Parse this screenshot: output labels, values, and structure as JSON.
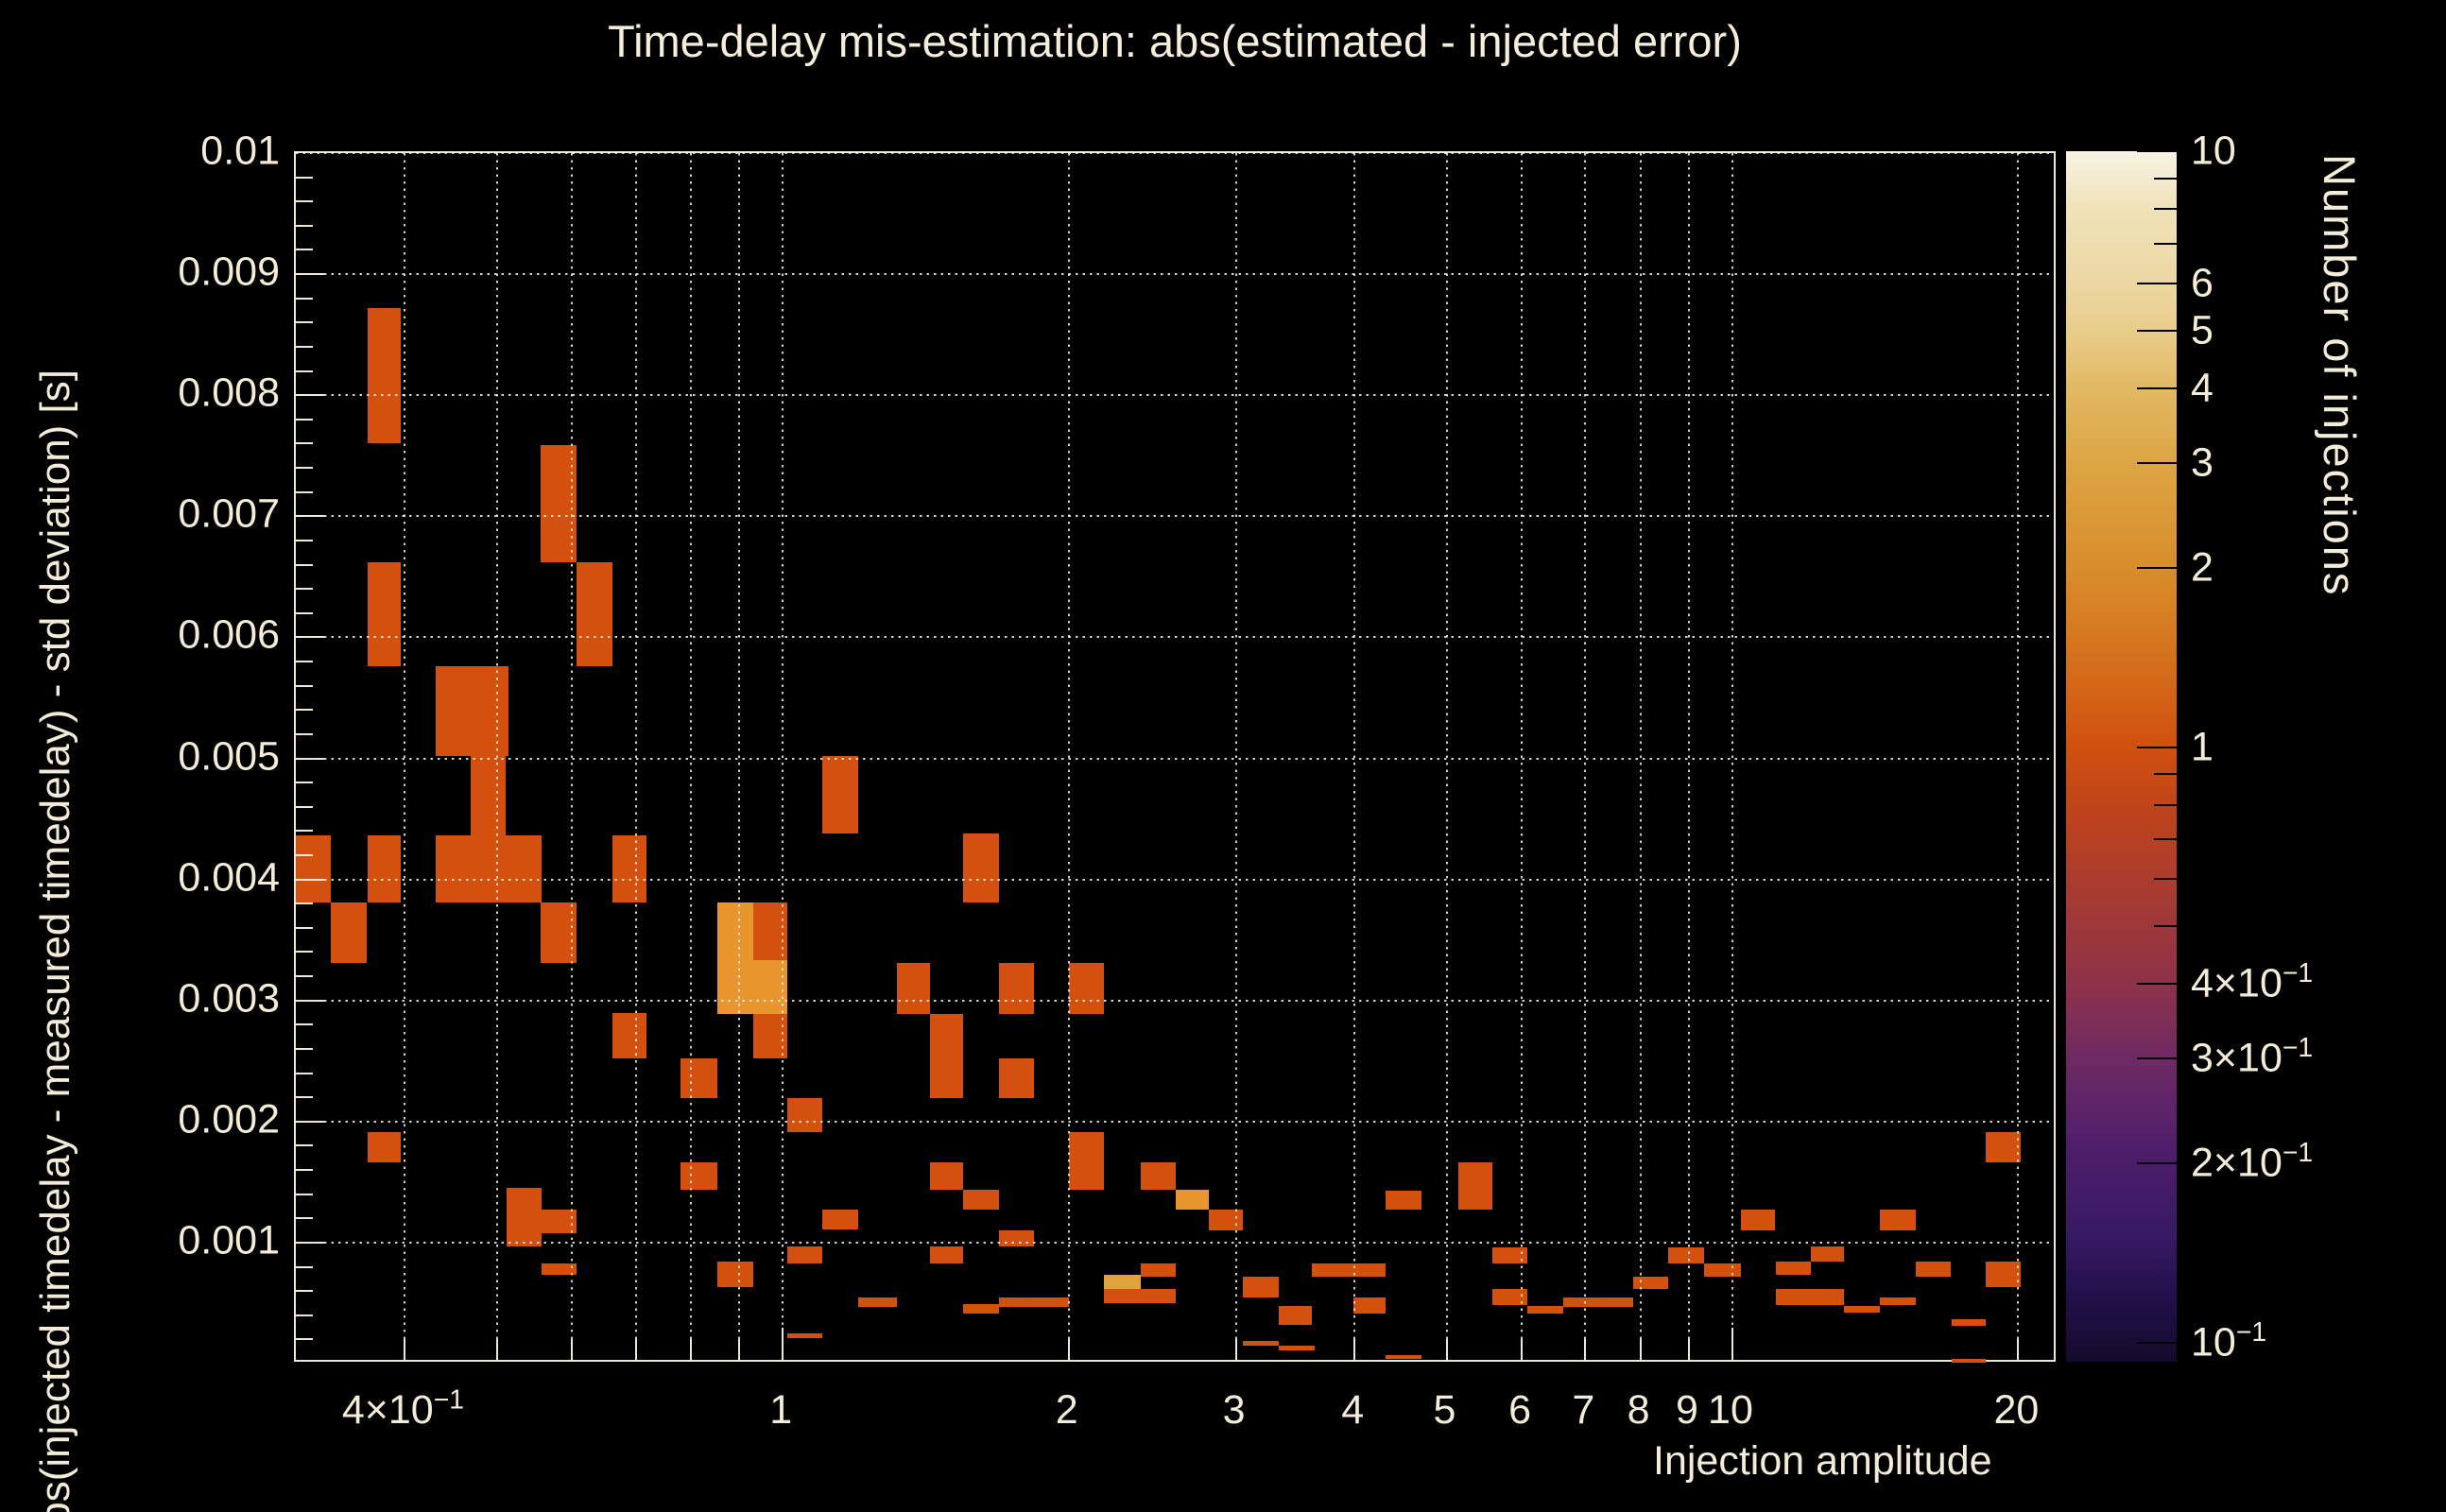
{
  "figure": {
    "background_color": "#000000",
    "text_color": "#f2ecd8",
    "frame_color": "#eee8d4"
  },
  "chart_data": {
    "type": "heatmap",
    "title": "Time-delay mis-estimation: abs(estimated - injected error)",
    "xlabel": "Injection amplitude",
    "ylabel": "bs(injected timedelay - measured timedelay) - std deviation) [s]",
    "zlabel": "Number of injections",
    "grid": true,
    "x_axis": {
      "scale": "log",
      "min": 0.307,
      "max": 22.0,
      "ticks": [
        0.4,
        0.5,
        0.6,
        0.7,
        0.8,
        0.9,
        1,
        2,
        3,
        4,
        5,
        6,
        7,
        8,
        9,
        10,
        20
      ],
      "tick_labels": [
        {
          "v": 0.4,
          "base": "4×10",
          "exp": "−1"
        },
        {
          "v": 1,
          "base": "1"
        },
        {
          "v": 2,
          "base": "2"
        },
        {
          "v": 3,
          "base": "3"
        },
        {
          "v": 4,
          "base": "4"
        },
        {
          "v": 5,
          "base": "5"
        },
        {
          "v": 6,
          "base": "6"
        },
        {
          "v": 7,
          "base": "7"
        },
        {
          "v": 8,
          "base": "8"
        },
        {
          "v": 9,
          "base": "9"
        },
        {
          "v": 10,
          "base": "10"
        },
        {
          "v": 20,
          "base": "20"
        }
      ]
    },
    "y_axis": {
      "scale": "linear",
      "min": 0,
      "max": 0.01,
      "major_tick_step": 0.001,
      "minor_tick_step": 0.0002,
      "tick_labels": [
        {
          "v": 0.01,
          "t": "0.01"
        },
        {
          "v": 0.009,
          "t": "0.009"
        },
        {
          "v": 0.008,
          "t": "0.008"
        },
        {
          "v": 0.007,
          "t": "0.007"
        },
        {
          "v": 0.006,
          "t": "0.006"
        },
        {
          "v": 0.005,
          "t": "0.005"
        },
        {
          "v": 0.004,
          "t": "0.004"
        },
        {
          "v": 0.003,
          "t": "0.003"
        },
        {
          "v": 0.002,
          "t": "0.002"
        },
        {
          "v": 0.001,
          "t": "0.001"
        }
      ]
    },
    "z_axis": {
      "scale": "log",
      "min": 0.093,
      "max": 10,
      "ticks": [
        10,
        9,
        8,
        7,
        6,
        5,
        4,
        3,
        2,
        1,
        0.9,
        0.8,
        0.7,
        0.6,
        0.5,
        0.4,
        0.3,
        0.2,
        0.1
      ],
      "labels": [
        {
          "v": 10,
          "base": "10"
        },
        {
          "v": 6,
          "base": "6"
        },
        {
          "v": 5,
          "base": "5"
        },
        {
          "v": 4,
          "base": "4"
        },
        {
          "v": 3,
          "base": "3"
        },
        {
          "v": 2,
          "base": "2"
        },
        {
          "v": 1,
          "base": "1"
        },
        {
          "v": 0.4,
          "base": "4×10",
          "exp": "−1"
        },
        {
          "v": 0.3,
          "base": "3×10",
          "exp": "−1"
        },
        {
          "v": 0.2,
          "base": "2×10",
          "exp": "−1"
        },
        {
          "v": 0.1,
          "base": "10",
          "exp": "−1"
        }
      ]
    },
    "palette_stops": [
      {
        "v": 10,
        "c": "#f7f3e3"
      },
      {
        "v": 8,
        "c": "#f0e2b9"
      },
      {
        "v": 6,
        "c": "#ecd7a2"
      },
      {
        "v": 5,
        "c": "#e8cd8b"
      },
      {
        "v": 4,
        "c": "#e2b963"
      },
      {
        "v": 3,
        "c": "#dda544"
      },
      {
        "v": 2,
        "c": "#d98d2b"
      },
      {
        "v": 1.4,
        "c": "#d5701c"
      },
      {
        "v": 1,
        "c": "#d1500f"
      },
      {
        "v": 0.75,
        "c": "#bc421d"
      },
      {
        "v": 0.55,
        "c": "#a53a34"
      },
      {
        "v": 0.4,
        "c": "#8e3249"
      },
      {
        "v": 0.3,
        "c": "#6e2a63"
      },
      {
        "v": 0.22,
        "c": "#521f6b"
      },
      {
        "v": 0.15,
        "c": "#371963"
      },
      {
        "v": 0.12,
        "c": "#22104a"
      },
      {
        "v": 0.093,
        "c": "#130b2b"
      }
    ],
    "count_colors": {
      "1": "#d4500e",
      "2": "#e8962d",
      "3": "#dfa43c"
    },
    "cells": [
      [
        0.365,
        0.396,
        0.0076,
        0.00872,
        1
      ],
      [
        0.556,
        0.606,
        0.00662,
        0.00759,
        1
      ],
      [
        0.365,
        0.396,
        0.00576,
        0.00662,
        1
      ],
      [
        0.607,
        0.661,
        0.00576,
        0.00662,
        1
      ],
      [
        0.431,
        0.514,
        0.00502,
        0.00576,
        1
      ],
      [
        0.469,
        0.511,
        0.00436,
        0.00502,
        1
      ],
      [
        0.431,
        0.557,
        0.00381,
        0.00436,
        1
      ],
      [
        0.307,
        0.334,
        0.00381,
        0.00436,
        1
      ],
      [
        0.365,
        0.396,
        0.00381,
        0.00436,
        1
      ],
      [
        0.661,
        0.719,
        0.00381,
        0.00436,
        1
      ],
      [
        0.334,
        0.365,
        0.00331,
        0.00381,
        1
      ],
      [
        0.556,
        0.607,
        0.00331,
        0.00381,
        1
      ],
      [
        0.661,
        0.719,
        0.00252,
        0.0029,
        1
      ],
      [
        0.365,
        0.396,
        0.00166,
        0.00191,
        1
      ],
      [
        0.512,
        0.557,
        0.00097,
        0.00145,
        1
      ],
      [
        0.557,
        0.607,
        0.00108,
        0.00127,
        1
      ],
      [
        0.557,
        0.607,
        0.00073,
        0.00083,
        1
      ],
      [
        1.1,
        1.2,
        0.00438,
        0.00502,
        1
      ],
      [
        1.55,
        1.69,
        0.00381,
        0.00438,
        1
      ],
      [
        0.853,
        0.931,
        0.00289,
        0.00381,
        2
      ],
      [
        0.931,
        1.01,
        0.00333,
        0.00381,
        1
      ],
      [
        0.931,
        1.01,
        0.00289,
        0.00333,
        2
      ],
      [
        0.931,
        1.01,
        0.00252,
        0.00289,
        1
      ],
      [
        0.781,
        0.853,
        0.00219,
        0.00252,
        1
      ],
      [
        1.01,
        1.1,
        0.00191,
        0.00219,
        1
      ],
      [
        0.781,
        0.853,
        0.00144,
        0.00166,
        1
      ],
      [
        1.43,
        1.55,
        0.00219,
        0.00289,
        1
      ],
      [
        1.32,
        1.43,
        0.00289,
        0.00331,
        1
      ],
      [
        1.69,
        1.84,
        0.00289,
        0.00331,
        1
      ],
      [
        2.0,
        2.18,
        0.00289,
        0.00331,
        1
      ],
      [
        1.69,
        1.84,
        0.00219,
        0.00252,
        1
      ],
      [
        1.43,
        1.55,
        0.00144,
        0.00166,
        1
      ],
      [
        1.55,
        1.69,
        0.00127,
        0.00144,
        1
      ],
      [
        1.1,
        1.2,
        0.00111,
        0.00127,
        1
      ],
      [
        1.69,
        1.84,
        0.00097,
        0.0011,
        1
      ],
      [
        0.853,
        0.931,
        0.00063,
        0.00084,
        1
      ],
      [
        1.01,
        1.1,
        0.00083,
        0.00097,
        1
      ],
      [
        1.43,
        1.55,
        0.00083,
        0.00097,
        1
      ],
      [
        1.2,
        1.32,
        0.00047,
        0.00055,
        1
      ],
      [
        1.55,
        1.69,
        0.00041,
        0.00049,
        1
      ],
      [
        1.69,
        2.0,
        0.00047,
        0.00055,
        1
      ],
      [
        1.01,
        1.1,
        0.00021,
        0.00025,
        1
      ],
      [
        2.0,
        2.18,
        0.00144,
        0.00191,
        1
      ],
      [
        2.38,
        2.59,
        0.00144,
        0.00166,
        1
      ],
      [
        2.59,
        2.81,
        0.00127,
        0.00144,
        2
      ],
      [
        2.81,
        3.05,
        0.0011,
        0.00127,
        1
      ],
      [
        2.38,
        2.59,
        0.00072,
        0.00083,
        1
      ],
      [
        2.18,
        2.38,
        0.00062,
        0.00073,
        3
      ],
      [
        2.18,
        2.59,
        0.0005,
        0.00062,
        1
      ],
      [
        3.05,
        3.33,
        0.00055,
        0.00072,
        1
      ],
      [
        3.33,
        3.61,
        0.00032,
        0.00048,
        1
      ],
      [
        3.05,
        3.33,
        0.00015,
        0.00019,
        1
      ],
      [
        3.33,
        3.63,
        0.00011,
        0.00015,
        1
      ],
      [
        3.61,
        4.31,
        0.00072,
        0.00083,
        1
      ],
      [
        3.99,
        4.31,
        0.00041,
        0.00055,
        1
      ],
      [
        4.31,
        4.71,
        0.00127,
        0.00143,
        1
      ],
      [
        5.14,
        5.59,
        0.00127,
        0.00166,
        1
      ],
      [
        4.31,
        4.71,
        4e-05,
        7e-05,
        1
      ],
      [
        5.59,
        6.08,
        0.00083,
        0.00096,
        1
      ],
      [
        5.59,
        6.08,
        0.00048,
        0.00062,
        1
      ],
      [
        6.08,
        6.64,
        0.00041,
        0.00048,
        1
      ],
      [
        6.64,
        7.86,
        0.00047,
        0.00055,
        1
      ],
      [
        18.5,
        20.1,
        0.00166,
        0.00191,
        1
      ],
      [
        10.2,
        11.1,
        0.0011,
        0.00127,
        1
      ],
      [
        14.3,
        15.6,
        0.0011,
        0.00127,
        1
      ],
      [
        8.56,
        9.34,
        0.00083,
        0.00096,
        1
      ],
      [
        9.34,
        10.2,
        0.00072,
        0.00083,
        1
      ],
      [
        7.86,
        8.56,
        0.00062,
        0.00072,
        1
      ],
      [
        11.1,
        12.1,
        0.00073,
        0.00084,
        1
      ],
      [
        11.1,
        13.1,
        0.00048,
        0.00062,
        1
      ],
      [
        12.1,
        13.1,
        0.00084,
        0.00097,
        1
      ],
      [
        13.1,
        14.3,
        0.00042,
        0.00048,
        1
      ],
      [
        14.3,
        15.6,
        0.00048,
        0.00055,
        1
      ],
      [
        15.6,
        17.0,
        0.00072,
        0.00084,
        1
      ],
      [
        18.5,
        20.1,
        0.00063,
        0.00084,
        1
      ],
      [
        17.0,
        18.5,
        0.00031,
        0.00037,
        1
      ],
      [
        17.0,
        18.5,
        1e-05,
        4e-05,
        1
      ]
    ]
  }
}
